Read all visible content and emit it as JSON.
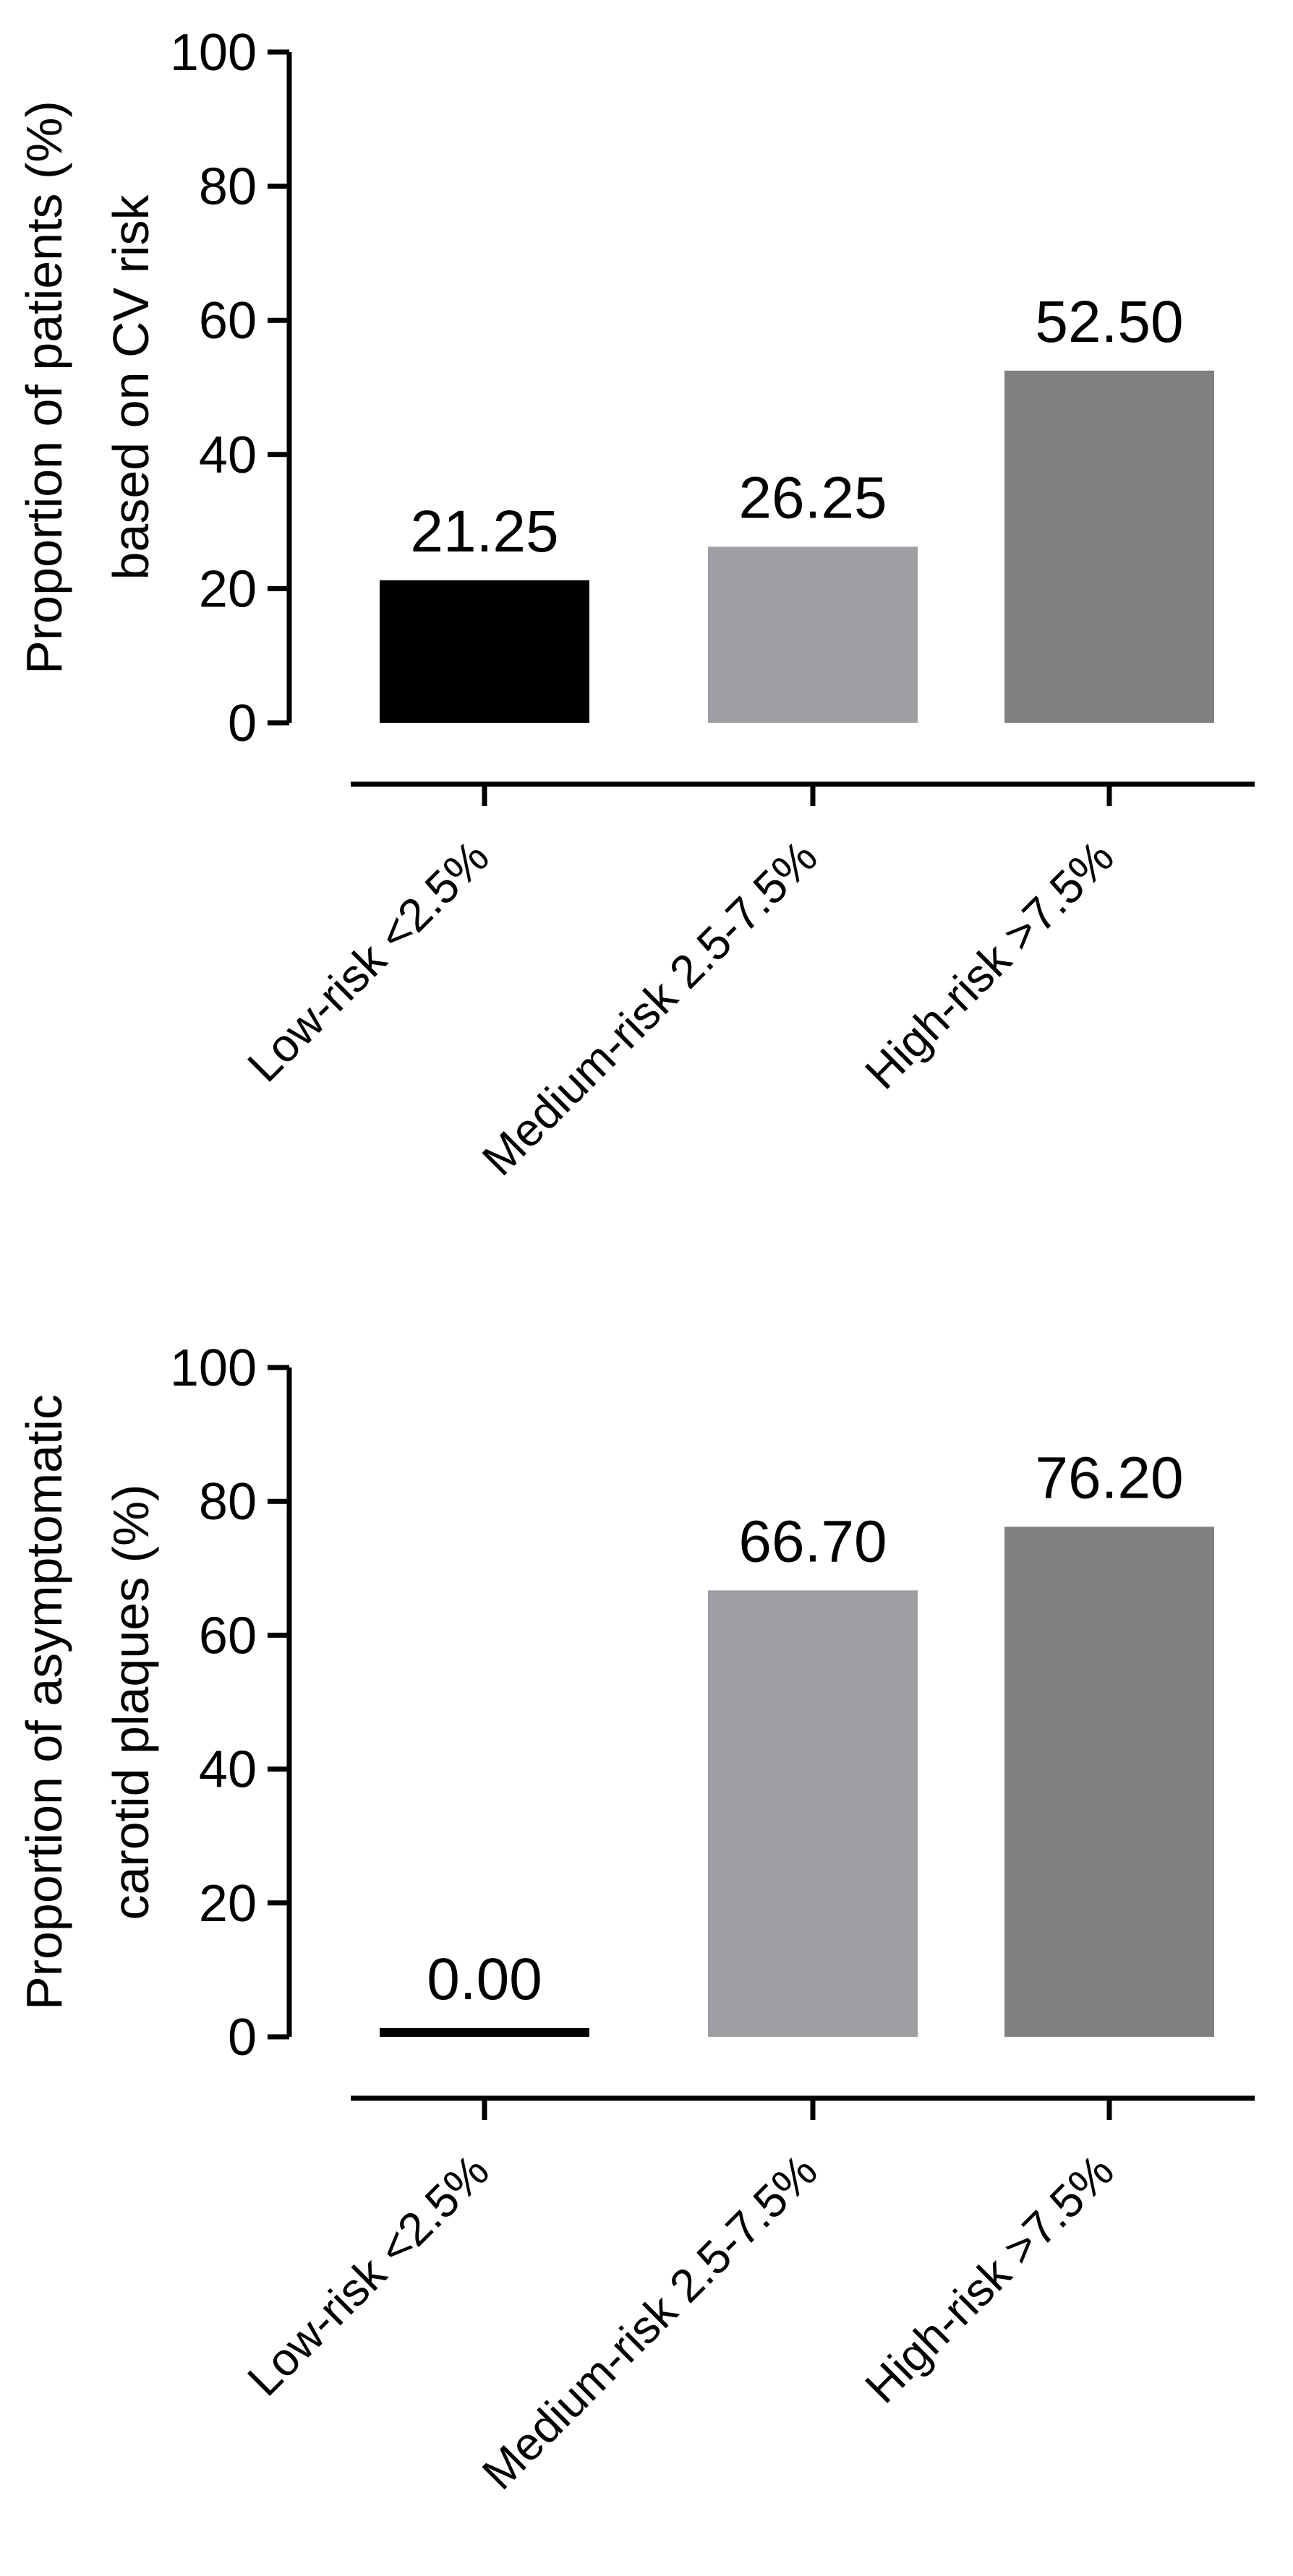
{
  "chart_data": [
    {
      "type": "bar",
      "categories": [
        "Low-risk <2.5%",
        "Medium-risk 2.5-7.5%",
        "High-risk >7.5%"
      ],
      "values": [
        21.25,
        26.25,
        52.5
      ],
      "value_labels": [
        "21.25",
        "26.25",
        "52.50"
      ],
      "colors": [
        "#000000",
        "#a09ea4",
        "#808080"
      ],
      "ylabel_lines": [
        "Proportion of patients (%)",
        "based on CV risk"
      ],
      "ylim": [
        0,
        100
      ],
      "yticks": [
        0,
        20,
        40,
        60,
        80,
        100
      ],
      "grid": false,
      "legend": "none"
    },
    {
      "type": "bar",
      "categories": [
        "Low-risk <2.5%",
        "Medium-risk 2.5-7.5%",
        "High-risk >7.5%"
      ],
      "values": [
        0.0,
        66.7,
        76.2
      ],
      "value_labels": [
        "0.00",
        "66.70",
        "76.20"
      ],
      "colors": [
        "#000000",
        "#a09ea4",
        "#808080"
      ],
      "ylabel_lines": [
        "Proportion of asymptomatic",
        "carotid plaques (%)"
      ],
      "ylim": [
        0,
        100
      ],
      "yticks": [
        0,
        20,
        40,
        60,
        80,
        100
      ],
      "grid": false,
      "legend": "none"
    }
  ]
}
